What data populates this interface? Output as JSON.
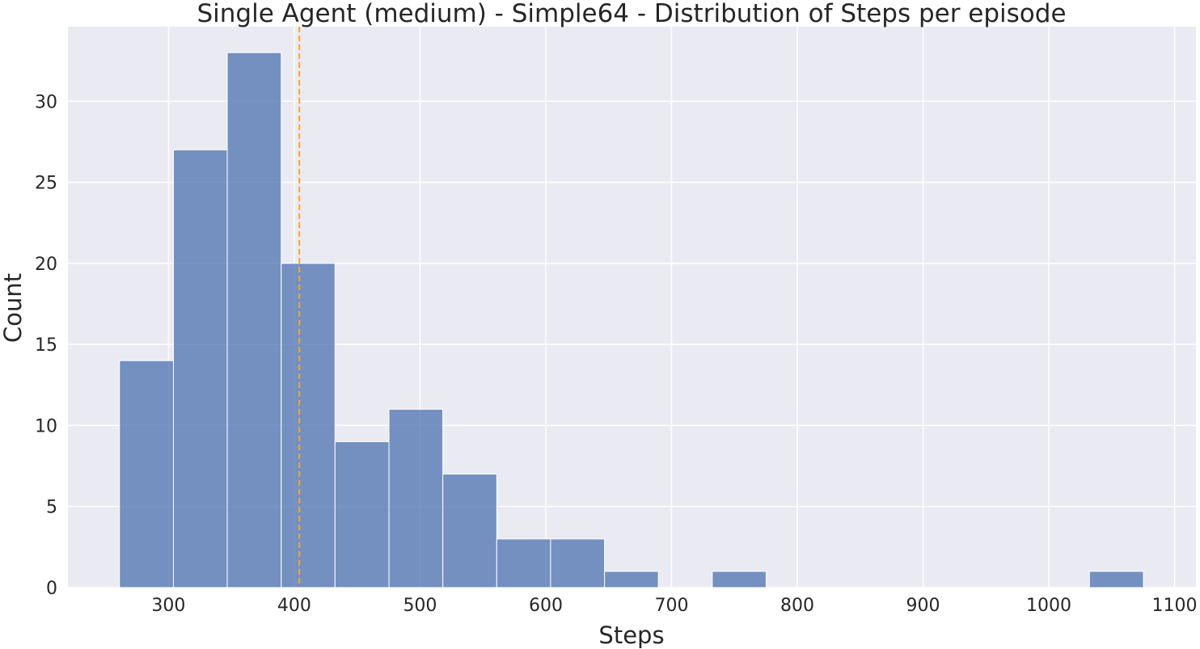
{
  "chart_data": {
    "type": "histogram",
    "title": "Single Agent (medium) - Simple64 - Distribution of Steps per episode",
    "xlabel": "Steps",
    "ylabel": "Count",
    "xlim": [
      220,
      1117
    ],
    "ylim": [
      0,
      34.6
    ],
    "xticks": [
      300,
      400,
      500,
      600,
      700,
      800,
      900,
      1000,
      1100
    ],
    "yticks": [
      0,
      5,
      10,
      15,
      20,
      25,
      30
    ],
    "grid": true,
    "bin_width": 42.85,
    "bins": [
      {
        "start": 261.0,
        "end": 303.9,
        "count": 14
      },
      {
        "start": 303.9,
        "end": 346.7,
        "count": 27
      },
      {
        "start": 346.7,
        "end": 389.6,
        "count": 33
      },
      {
        "start": 389.6,
        "end": 432.4,
        "count": 20
      },
      {
        "start": 432.4,
        "end": 475.3,
        "count": 9
      },
      {
        "start": 475.3,
        "end": 518.1,
        "count": 11
      },
      {
        "start": 518.1,
        "end": 561.0,
        "count": 7
      },
      {
        "start": 561.0,
        "end": 603.8,
        "count": 3
      },
      {
        "start": 603.8,
        "end": 646.7,
        "count": 3
      },
      {
        "start": 646.7,
        "end": 689.5,
        "count": 1
      },
      {
        "start": 689.5,
        "end": 732.4,
        "count": 0
      },
      {
        "start": 732.4,
        "end": 775.2,
        "count": 1
      },
      {
        "start": 775.2,
        "end": 818.1,
        "count": 0
      },
      {
        "start": 818.1,
        "end": 860.9,
        "count": 0
      },
      {
        "start": 860.9,
        "end": 903.8,
        "count": 0
      },
      {
        "start": 903.8,
        "end": 946.6,
        "count": 0
      },
      {
        "start": 946.6,
        "end": 989.5,
        "count": 0
      },
      {
        "start": 989.5,
        "end": 1032.3,
        "count": 0
      },
      {
        "start": 1032.3,
        "end": 1075.2,
        "count": 1
      }
    ],
    "mean_line": {
      "x": 404,
      "style": "dashed",
      "color": "#f5a623"
    },
    "colors": {
      "bar": "#4c72b0",
      "background": "#eaeaf2",
      "grid": "#ffffff"
    }
  }
}
